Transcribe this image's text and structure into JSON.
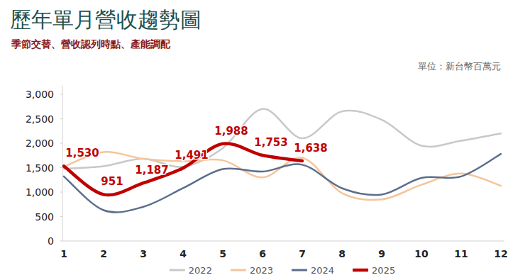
{
  "chart_data": {
    "type": "line",
    "title": "歷年單月營收趨勢圖",
    "subtitle": "季節交替、營收認列時點、產能調配",
    "y_label": "單位：新台幣百萬元",
    "categories": [
      "1",
      "2",
      "3",
      "4",
      "5",
      "6",
      "7",
      "8",
      "9",
      "10",
      "11",
      "12"
    ],
    "ylim": [
      0,
      3000
    ],
    "yticks": [
      0,
      500,
      {
        "value": 1000,
        "label": "1,000"
      },
      {
        "value": 1500,
        "label": "1,500"
      },
      {
        "value": 2000,
        "label": "2,000"
      },
      {
        "value": 2500,
        "label": "2,500"
      },
      {
        "value": 3000,
        "label": "3,000"
      }
    ],
    "grid": false,
    "legend": "bottom",
    "series": [
      {
        "name": "2022",
        "color": "#c8c8c8",
        "values": [
          1480,
          1530,
          1680,
          1520,
          1900,
          2700,
          2100,
          2650,
          2480,
          1950,
          2050,
          2200
        ]
      },
      {
        "name": "2023",
        "color": "#f5c59a",
        "values": [
          1520,
          1820,
          1680,
          1630,
          1650,
          1300,
          1700,
          980,
          850,
          1150,
          1380,
          1130
        ]
      },
      {
        "name": "2024",
        "color": "#5b6e8c",
        "values": [
          1320,
          630,
          700,
          1080,
          1470,
          1420,
          1560,
          1080,
          950,
          1290,
          1320,
          1780
        ]
      },
      {
        "name": "2025",
        "color": "#c00000",
        "data_labels": true,
        "values": [
          1530,
          951,
          1187,
          1491,
          1988,
          1753,
          1638,
          null,
          null,
          null,
          null,
          null
        ],
        "value_labels": [
          "1,530",
          "951",
          "1,187",
          "1,491",
          "1,988",
          "1,753",
          "1,638",
          null,
          null,
          null,
          null,
          null
        ]
      }
    ]
  }
}
